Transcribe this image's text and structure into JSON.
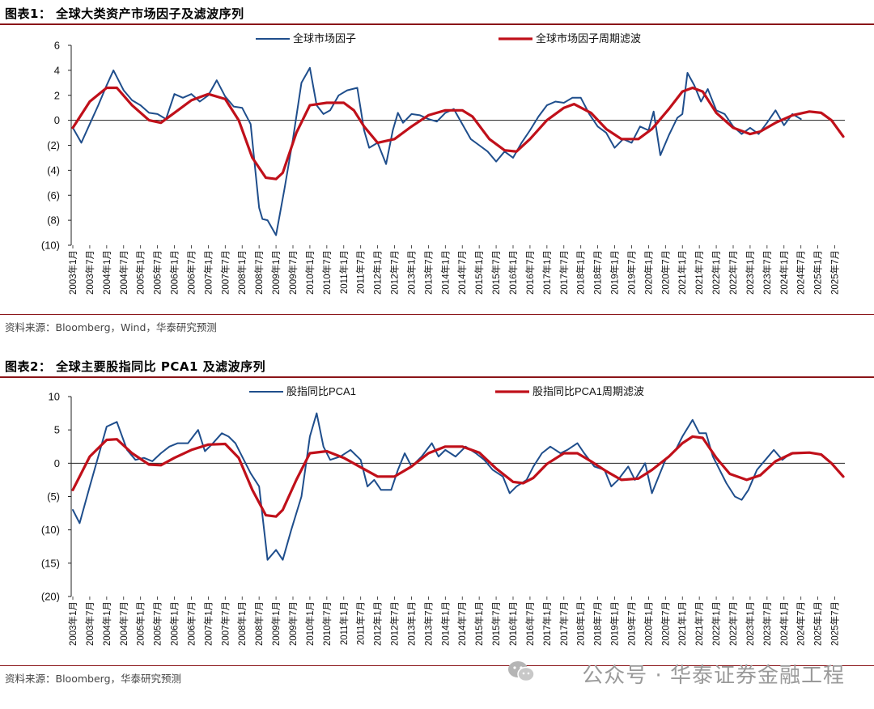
{
  "figure1": {
    "title": "图表1： 全球大类资产市场因子及滤波序列",
    "source": "资料来源：Bloomberg，Wind，华泰研究预测"
  },
  "figure2": {
    "title": "图表2： 全球主要股指同比 PCA1 及滤波序列",
    "source": "资料来源：Bloomberg，华泰研究预测"
  },
  "watermark": "公众号 · 华泰证券金融工程",
  "colors": {
    "raw": "#1f4e8c",
    "filtered": "#c0101a",
    "title_rule": "#8a1418",
    "axis": "#222222"
  },
  "chart_data": [
    {
      "type": "line",
      "title": "",
      "x_ticks": [
        "2003年1月",
        "2003年7月",
        "2004年1月",
        "2004年7月",
        "2005年1月",
        "2005年7月",
        "2006年1月",
        "2006年7月",
        "2007年1月",
        "2007年7月",
        "2008年1月",
        "2008年7月",
        "2009年1月",
        "2009年7月",
        "2010年1月",
        "2010年7月",
        "2011年1月",
        "2011年7月",
        "2012年1月",
        "2012年7月",
        "2013年1月",
        "2013年7月",
        "2014年1月",
        "2014年7月",
        "2015年1月",
        "2015年7月",
        "2016年1月",
        "2016年7月",
        "2017年1月",
        "2017年7月",
        "2018年1月",
        "2018年7月",
        "2019年1月",
        "2019年7月",
        "2020年1月",
        "2020年7月",
        "2021年1月",
        "2021年7月",
        "2022年1月",
        "2022年7月",
        "2023年1月",
        "2023年7月",
        "2024年1月",
        "2024年7月",
        "2025年1月",
        "2025年7月"
      ],
      "y_ticks": [
        "6",
        "4",
        "2",
        "0",
        "(2)",
        "(4)",
        "(6)",
        "(8)",
        "(10)"
      ],
      "ylim": [
        -10,
        6
      ],
      "legend": "top",
      "series": [
        {
          "name": "全球市场因子",
          "x": [
            2003.0,
            2003.25,
            2003.5,
            2003.75,
            2004.0,
            2004.2,
            2004.5,
            2004.75,
            2005.0,
            2005.25,
            2005.5,
            2005.75,
            2006.0,
            2006.25,
            2006.5,
            2006.75,
            2007.0,
            2007.25,
            2007.5,
            2007.75,
            2008.0,
            2008.25,
            2008.5,
            2008.6,
            2008.75,
            2009.0,
            2009.25,
            2009.5,
            2009.75,
            2010.0,
            2010.2,
            2010.4,
            2010.6,
            2010.85,
            2011.1,
            2011.4,
            2011.6,
            2011.75,
            2012.0,
            2012.25,
            2012.45,
            2012.6,
            2012.75,
            2013.0,
            2013.25,
            2013.5,
            2013.75,
            2014.0,
            2014.25,
            2014.5,
            2014.75,
            2015.0,
            2015.25,
            2015.5,
            2015.75,
            2016.0,
            2016.25,
            2016.5,
            2016.75,
            2017.0,
            2017.25,
            2017.5,
            2017.75,
            2018.0,
            2018.25,
            2018.5,
            2018.75,
            2019.0,
            2019.25,
            2019.5,
            2019.75,
            2020.0,
            2020.15,
            2020.35,
            2020.6,
            2020.85,
            2021.0,
            2021.15,
            2021.35,
            2021.55,
            2021.75,
            2022.0,
            2022.25,
            2022.5,
            2022.75,
            2023.0,
            2023.25,
            2023.5,
            2023.75,
            2024.0,
            2024.25,
            2024.5
          ],
          "values": [
            -0.6,
            -1.8,
            -0.3,
            1.2,
            2.8,
            4.0,
            2.4,
            1.6,
            1.2,
            0.6,
            0.5,
            0.1,
            2.1,
            1.8,
            2.1,
            1.5,
            2.0,
            3.2,
            1.9,
            1.1,
            1.0,
            -0.3,
            -7.0,
            -7.9,
            -8.0,
            -9.2,
            -5.5,
            -1.5,
            3.0,
            4.2,
            1.2,
            0.5,
            0.8,
            2.0,
            2.4,
            2.6,
            -0.8,
            -2.2,
            -1.8,
            -3.5,
            -0.8,
            0.6,
            -0.2,
            0.5,
            0.4,
            0.1,
            -0.1,
            0.6,
            0.9,
            -0.3,
            -1.5,
            -2.0,
            -2.5,
            -3.3,
            -2.5,
            -3.0,
            -1.8,
            -0.8,
            0.3,
            1.2,
            1.5,
            1.4,
            1.8,
            1.8,
            0.5,
            -0.5,
            -1.0,
            -2.2,
            -1.5,
            -1.8,
            -0.5,
            -0.8,
            0.7,
            -2.8,
            -1.2,
            0.2,
            0.5,
            3.8,
            2.8,
            1.5,
            2.5,
            0.8,
            0.5,
            -0.5,
            -1.1,
            -0.6,
            -1.1,
            -0.2,
            0.8,
            -0.4,
            0.5,
            0.1
          ]
        },
        {
          "name": "全球市场因子周期滤波",
          "x": [
            2003.0,
            2003.5,
            2004.0,
            2004.3,
            2004.75,
            2005.25,
            2005.6,
            2006.0,
            2006.5,
            2007.0,
            2007.5,
            2007.9,
            2008.3,
            2008.7,
            2009.0,
            2009.2,
            2009.6,
            2010.0,
            2010.5,
            2011.0,
            2011.3,
            2011.6,
            2012.0,
            2012.5,
            2013.0,
            2013.5,
            2014.0,
            2014.5,
            2014.8,
            2015.3,
            2015.75,
            2016.1,
            2016.5,
            2017.0,
            2017.5,
            2017.8,
            2018.3,
            2018.75,
            2019.2,
            2019.7,
            2020.1,
            2020.6,
            2021.0,
            2021.3,
            2021.6,
            2022.0,
            2022.5,
            2023.0,
            2023.3,
            2023.75,
            2024.25,
            2024.75,
            2025.1,
            2025.4,
            2025.75
          ],
          "values": [
            -0.6,
            1.5,
            2.6,
            2.6,
            1.2,
            0.0,
            -0.2,
            0.6,
            1.6,
            2.1,
            1.7,
            0.0,
            -3.0,
            -4.6,
            -4.7,
            -4.2,
            -1.0,
            1.2,
            1.4,
            1.4,
            0.8,
            -0.5,
            -1.8,
            -1.5,
            -0.5,
            0.4,
            0.8,
            0.8,
            0.3,
            -1.5,
            -2.4,
            -2.5,
            -1.5,
            0.0,
            1.0,
            1.3,
            0.6,
            -0.7,
            -1.5,
            -1.5,
            -0.7,
            0.9,
            2.3,
            2.6,
            2.3,
            0.6,
            -0.6,
            -1.1,
            -0.9,
            -0.2,
            0.4,
            0.7,
            0.6,
            0.0,
            -1.3
          ]
        }
      ]
    },
    {
      "type": "line",
      "title": "",
      "x_ticks": [
        "2003年1月",
        "2003年7月",
        "2004年1月",
        "2004年7月",
        "2005年1月",
        "2005年7月",
        "2006年1月",
        "2006年7月",
        "2007年1月",
        "2007年7月",
        "2008年1月",
        "2008年7月",
        "2009年1月",
        "2009年7月",
        "2010年1月",
        "2010年7月",
        "2011年1月",
        "2011年7月",
        "2012年1月",
        "2012年7月",
        "2013年1月",
        "2013年7月",
        "2014年1月",
        "2014年7月",
        "2015年1月",
        "2015年7月",
        "2016年1月",
        "2016年7月",
        "2017年1月",
        "2017年7月",
        "2018年1月",
        "2018年7月",
        "2019年1月",
        "2019年7月",
        "2020年1月",
        "2020年7月",
        "2021年1月",
        "2021年7月",
        "2022年1月",
        "2022年7月",
        "2023年1月",
        "2023年7月",
        "2024年1月",
        "2024年7月",
        "2025年1月",
        "2025年7月"
      ],
      "y_ticks": [
        "10",
        "5",
        "0",
        "(5)",
        "(10)",
        "(15)",
        "(20)"
      ],
      "ylim": [
        -20,
        10
      ],
      "legend": "top",
      "series": [
        {
          "name": "股指同比PCA1",
          "x": [
            2003.0,
            2003.2,
            2003.5,
            2003.75,
            2004.0,
            2004.3,
            2004.6,
            2004.85,
            2005.1,
            2005.35,
            2005.6,
            2005.85,
            2006.1,
            2006.4,
            2006.7,
            2006.9,
            2007.1,
            2007.4,
            2007.6,
            2007.8,
            2008.0,
            2008.25,
            2008.5,
            2008.75,
            2009.0,
            2009.2,
            2009.45,
            2009.75,
            2010.0,
            2010.2,
            2010.4,
            2010.6,
            2010.9,
            2011.2,
            2011.5,
            2011.7,
            2011.9,
            2012.1,
            2012.4,
            2012.6,
            2012.8,
            2013.0,
            2013.3,
            2013.6,
            2013.8,
            2014.0,
            2014.3,
            2014.6,
            2014.9,
            2015.15,
            2015.4,
            2015.7,
            2015.9,
            2016.1,
            2016.4,
            2016.6,
            2016.85,
            2017.1,
            2017.4,
            2017.6,
            2017.9,
            2018.1,
            2018.4,
            2018.7,
            2018.9,
            2019.1,
            2019.4,
            2019.6,
            2019.9,
            2020.1,
            2020.3,
            2020.5,
            2020.8,
            2021.0,
            2021.3,
            2021.5,
            2021.7,
            2021.9,
            2022.1,
            2022.3,
            2022.55,
            2022.75,
            2022.95,
            2023.2,
            2023.45,
            2023.7,
            2023.95,
            2024.2,
            2024.5
          ],
          "values": [
            -7.0,
            -9.0,
            -3.5,
            1.0,
            5.5,
            6.2,
            2.0,
            0.5,
            0.8,
            0.3,
            1.5,
            2.5,
            3.0,
            3.0,
            5.0,
            1.8,
            2.8,
            4.5,
            4.0,
            3.0,
            1.0,
            -1.5,
            -3.5,
            -14.5,
            -13.0,
            -14.5,
            -10.0,
            -5.0,
            4.0,
            7.5,
            2.5,
            0.5,
            1.0,
            2.0,
            0.5,
            -3.5,
            -2.5,
            -4.0,
            -4.0,
            -1.0,
            1.5,
            -0.5,
            1.0,
            3.0,
            1.0,
            2.0,
            1.0,
            2.5,
            1.5,
            0.5,
            -1.0,
            -2.0,
            -4.5,
            -3.5,
            -2.5,
            -0.5,
            1.5,
            2.5,
            1.5,
            2.0,
            3.0,
            1.5,
            -0.5,
            -1.0,
            -3.5,
            -2.5,
            -0.5,
            -2.5,
            0.0,
            -4.5,
            -2.0,
            0.5,
            2.0,
            4.0,
            6.5,
            4.5,
            4.5,
            1.0,
            -1.0,
            -3.0,
            -5.0,
            -5.5,
            -4.0,
            -1.0,
            0.5,
            2.0,
            0.5,
            1.5,
            1.5
          ]
        },
        {
          "name": "股指同比PCA1周期滤波",
          "x": [
            2003.0,
            2003.5,
            2004.0,
            2004.3,
            2004.75,
            2005.25,
            2005.6,
            2006.0,
            2006.5,
            2007.0,
            2007.5,
            2007.9,
            2008.3,
            2008.7,
            2009.0,
            2009.2,
            2009.6,
            2010.0,
            2010.5,
            2011.0,
            2011.5,
            2012.0,
            2012.5,
            2013.0,
            2013.5,
            2014.0,
            2014.5,
            2015.0,
            2015.5,
            2016.0,
            2016.3,
            2016.6,
            2017.0,
            2017.5,
            2017.9,
            2018.3,
            2018.75,
            2019.2,
            2019.7,
            2020.1,
            2020.6,
            2021.0,
            2021.3,
            2021.6,
            2022.0,
            2022.4,
            2022.9,
            2023.3,
            2023.75,
            2024.25,
            2024.75,
            2025.1,
            2025.4,
            2025.75
          ],
          "values": [
            -4.0,
            1.0,
            3.5,
            3.6,
            1.5,
            -0.2,
            -0.3,
            0.8,
            2.0,
            2.8,
            2.9,
            0.8,
            -4.0,
            -7.8,
            -8.0,
            -7.0,
            -2.5,
            1.5,
            1.8,
            0.8,
            -0.6,
            -2.0,
            -2.0,
            -0.5,
            1.5,
            2.5,
            2.5,
            1.6,
            -0.8,
            -2.8,
            -3.0,
            -2.2,
            -0.1,
            1.5,
            1.5,
            0.3,
            -1.2,
            -2.5,
            -2.3,
            -1.0,
            1.0,
            3.0,
            4.0,
            3.8,
            0.8,
            -1.6,
            -2.5,
            -1.8,
            0.3,
            1.5,
            1.6,
            1.3,
            0.0,
            -2.0
          ]
        }
      ]
    }
  ]
}
